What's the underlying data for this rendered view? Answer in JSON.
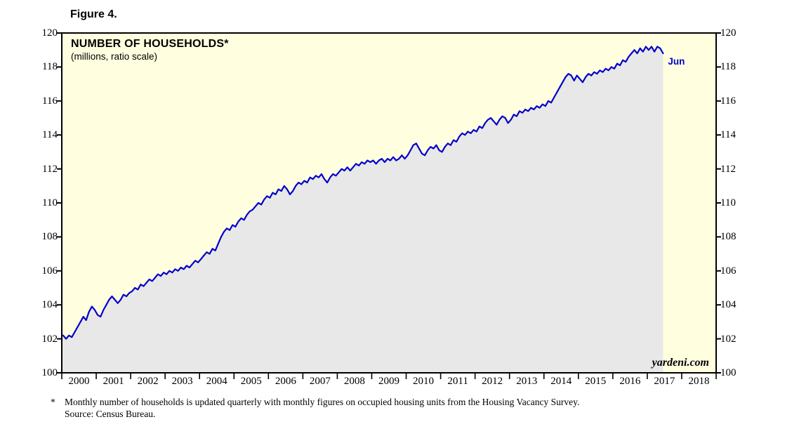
{
  "figure_label": "Figure 4.",
  "watermark": "yardeni.com",
  "footnote": {
    "marker": "*",
    "line1": "Monthly number of households is updated quarterly with monthly figures on occupied housing units from the Housing Vacancy Survey.",
    "line2": "Source: Census Bureau."
  },
  "colors": {
    "line": "#0000cc",
    "area_fill": "#e8e8e8",
    "plot_background": "#ffffe0",
    "frame": "#000000",
    "annotation": "#0000cc"
  },
  "chart_data": {
    "type": "line",
    "title": "NUMBER OF HOUSEHOLDS*",
    "subtitle": "(millions, ratio scale)",
    "ylabel": "Households (millions, ratio scale)",
    "ylim": [
      100,
      120
    ],
    "y_ticks": [
      100,
      102,
      104,
      106,
      108,
      110,
      112,
      114,
      116,
      118,
      120
    ],
    "x_axis_years": [
      2000,
      2001,
      2002,
      2003,
      2004,
      2005,
      2006,
      2007,
      2008,
      2009,
      2010,
      2011,
      2012,
      2013,
      2014,
      2015,
      2016,
      2017,
      2018
    ],
    "x_start": {
      "year": 2000,
      "month": 1
    },
    "x_end": {
      "year": 2017,
      "month": 6
    },
    "last_point_label": "Jun",
    "grid": false,
    "legend": false,
    "series": [
      {
        "name": "Number of households",
        "monthly_values": [
          102.2,
          102.0,
          102.2,
          102.1,
          102.4,
          102.7,
          103.0,
          103.3,
          103.1,
          103.6,
          103.9,
          103.7,
          103.4,
          103.3,
          103.7,
          104.0,
          104.3,
          104.5,
          104.3,
          104.1,
          104.3,
          104.6,
          104.5,
          104.7,
          104.8,
          105.0,
          104.9,
          105.2,
          105.1,
          105.3,
          105.5,
          105.4,
          105.6,
          105.8,
          105.7,
          105.9,
          105.8,
          106.0,
          105.9,
          106.1,
          106.0,
          106.2,
          106.1,
          106.3,
          106.2,
          106.4,
          106.6,
          106.5,
          106.7,
          106.9,
          107.1,
          107.0,
          107.3,
          107.2,
          107.6,
          108.0,
          108.3,
          108.5,
          108.4,
          108.7,
          108.6,
          108.9,
          109.1,
          109.0,
          109.3,
          109.5,
          109.6,
          109.8,
          110.0,
          109.9,
          110.2,
          110.4,
          110.3,
          110.6,
          110.5,
          110.8,
          110.7,
          111.0,
          110.8,
          110.5,
          110.7,
          111.0,
          111.2,
          111.1,
          111.3,
          111.2,
          111.5,
          111.4,
          111.6,
          111.5,
          111.7,
          111.4,
          111.2,
          111.5,
          111.7,
          111.6,
          111.8,
          112.0,
          111.9,
          112.1,
          111.9,
          112.1,
          112.3,
          112.2,
          112.4,
          112.3,
          112.5,
          112.4,
          112.5,
          112.3,
          112.5,
          112.6,
          112.4,
          112.6,
          112.5,
          112.7,
          112.5,
          112.6,
          112.8,
          112.6,
          112.8,
          113.1,
          113.4,
          113.5,
          113.2,
          112.9,
          112.8,
          113.1,
          113.3,
          113.2,
          113.4,
          113.1,
          113.0,
          113.3,
          113.5,
          113.4,
          113.7,
          113.6,
          113.9,
          114.1,
          114.0,
          114.2,
          114.1,
          114.3,
          114.2,
          114.5,
          114.4,
          114.7,
          114.9,
          115.0,
          114.8,
          114.6,
          114.9,
          115.1,
          115.0,
          114.7,
          114.9,
          115.2,
          115.1,
          115.4,
          115.3,
          115.5,
          115.4,
          115.6,
          115.5,
          115.7,
          115.6,
          115.8,
          115.7,
          116.0,
          115.9,
          116.2,
          116.5,
          116.8,
          117.1,
          117.4,
          117.6,
          117.5,
          117.2,
          117.5,
          117.3,
          117.1,
          117.4,
          117.6,
          117.5,
          117.7,
          117.6,
          117.8,
          117.7,
          117.9,
          117.8,
          118.0,
          117.9,
          118.2,
          118.1,
          118.4,
          118.3,
          118.6,
          118.8,
          119.0,
          118.8,
          119.1,
          118.9,
          119.2,
          119.0,
          119.2,
          118.9,
          119.2,
          119.1,
          118.8
        ]
      }
    ]
  }
}
